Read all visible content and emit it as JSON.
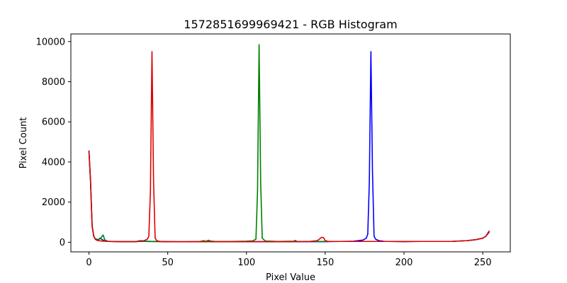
{
  "chart_data": {
    "type": "line",
    "title": "1572851699969421 - RGB Histogram",
    "xlabel": "Pixel Value",
    "ylabel": "Pixel Count",
    "xlim": [
      -11.5,
      267.5
    ],
    "ylim": [
      -480,
      10380
    ],
    "xticks": [
      0,
      50,
      100,
      150,
      200,
      250
    ],
    "yticks": [
      0,
      2000,
      4000,
      6000,
      8000,
      10000
    ],
    "grid": false,
    "legend": "none",
    "series": [
      {
        "color": "#0000ff",
        "points": [
          [
            0,
            4500
          ],
          [
            1,
            3000
          ],
          [
            2,
            800
          ],
          [
            3,
            300
          ],
          [
            4,
            150
          ],
          [
            5,
            100
          ],
          [
            6,
            120
          ],
          [
            7,
            200
          ],
          [
            8,
            150
          ],
          [
            9,
            100
          ],
          [
            10,
            60
          ],
          [
            12,
            40
          ],
          [
            20,
            30
          ],
          [
            30,
            40
          ],
          [
            33,
            80
          ],
          [
            34,
            60
          ],
          [
            36,
            50
          ],
          [
            40,
            40
          ],
          [
            45,
            40
          ],
          [
            50,
            30
          ],
          [
            60,
            25
          ],
          [
            70,
            30
          ],
          [
            80,
            30
          ],
          [
            90,
            30
          ],
          [
            100,
            25
          ],
          [
            110,
            30
          ],
          [
            120,
            30
          ],
          [
            130,
            30
          ],
          [
            140,
            30
          ],
          [
            150,
            30
          ],
          [
            160,
            40
          ],
          [
            168,
            50
          ],
          [
            170,
            70
          ],
          [
            172,
            90
          ],
          [
            174,
            110
          ],
          [
            176,
            200
          ],
          [
            177,
            400
          ],
          [
            178,
            3000
          ],
          [
            179,
            9500
          ],
          [
            180,
            3500
          ],
          [
            181,
            300
          ],
          [
            182,
            150
          ],
          [
            184,
            80
          ],
          [
            186,
            60
          ],
          [
            188,
            40
          ],
          [
            190,
            40
          ],
          [
            200,
            30
          ],
          [
            210,
            40
          ],
          [
            220,
            40
          ],
          [
            230,
            40
          ],
          [
            240,
            80
          ],
          [
            245,
            120
          ],
          [
            250,
            200
          ],
          [
            252,
            300
          ],
          [
            254,
            500
          ]
        ]
      },
      {
        "color": "#008000",
        "points": [
          [
            0,
            4550
          ],
          [
            1,
            3050
          ],
          [
            2,
            820
          ],
          [
            3,
            320
          ],
          [
            4,
            170
          ],
          [
            5,
            150
          ],
          [
            6,
            140
          ],
          [
            7,
            180
          ],
          [
            8,
            260
          ],
          [
            9,
            360
          ],
          [
            10,
            120
          ],
          [
            12,
            40
          ],
          [
            20,
            30
          ],
          [
            30,
            40
          ],
          [
            35,
            40
          ],
          [
            40,
            35
          ],
          [
            45,
            30
          ],
          [
            50,
            25
          ],
          [
            60,
            25
          ],
          [
            70,
            30
          ],
          [
            73,
            80
          ],
          [
            74,
            40
          ],
          [
            76,
            100
          ],
          [
            77,
            60
          ],
          [
            80,
            40
          ],
          [
            90,
            40
          ],
          [
            100,
            50
          ],
          [
            104,
            70
          ],
          [
            106,
            150
          ],
          [
            107,
            2500
          ],
          [
            108,
            9850
          ],
          [
            109,
            3000
          ],
          [
            110,
            200
          ],
          [
            112,
            60
          ],
          [
            120,
            40
          ],
          [
            130,
            50
          ],
          [
            131,
            90
          ],
          [
            132,
            40
          ],
          [
            140,
            40
          ],
          [
            150,
            40
          ],
          [
            160,
            40
          ],
          [
            170,
            40
          ],
          [
            180,
            40
          ],
          [
            190,
            40
          ],
          [
            200,
            40
          ],
          [
            210,
            40
          ],
          [
            220,
            40
          ],
          [
            230,
            40
          ],
          [
            240,
            80
          ],
          [
            245,
            120
          ],
          [
            250,
            200
          ],
          [
            252,
            300
          ],
          [
            254,
            550
          ]
        ]
      },
      {
        "color": "#e00000",
        "points": [
          [
            0,
            4550
          ],
          [
            1,
            3000
          ],
          [
            2,
            800
          ],
          [
            3,
            300
          ],
          [
            4,
            150
          ],
          [
            5,
            100
          ],
          [
            6,
            80
          ],
          [
            8,
            60
          ],
          [
            10,
            50
          ],
          [
            15,
            40
          ],
          [
            20,
            30
          ],
          [
            25,
            25
          ],
          [
            30,
            25
          ],
          [
            35,
            80
          ],
          [
            37,
            150
          ],
          [
            38,
            300
          ],
          [
            39,
            2500
          ],
          [
            40,
            9500
          ],
          [
            41,
            3000
          ],
          [
            42,
            200
          ],
          [
            43,
            80
          ],
          [
            45,
            40
          ],
          [
            50,
            30
          ],
          [
            60,
            25
          ],
          [
            70,
            30
          ],
          [
            80,
            30
          ],
          [
            90,
            30
          ],
          [
            100,
            30
          ],
          [
            110,
            30
          ],
          [
            120,
            30
          ],
          [
            130,
            30
          ],
          [
            140,
            40
          ],
          [
            145,
            80
          ],
          [
            147,
            200
          ],
          [
            148,
            250
          ],
          [
            149,
            220
          ],
          [
            150,
            80
          ],
          [
            152,
            40
          ],
          [
            160,
            40
          ],
          [
            170,
            40
          ],
          [
            180,
            40
          ],
          [
            190,
            40
          ],
          [
            200,
            40
          ],
          [
            210,
            40
          ],
          [
            220,
            40
          ],
          [
            230,
            40
          ],
          [
            240,
            80
          ],
          [
            245,
            120
          ],
          [
            250,
            200
          ],
          [
            252,
            300
          ],
          [
            254,
            550
          ]
        ]
      }
    ]
  }
}
